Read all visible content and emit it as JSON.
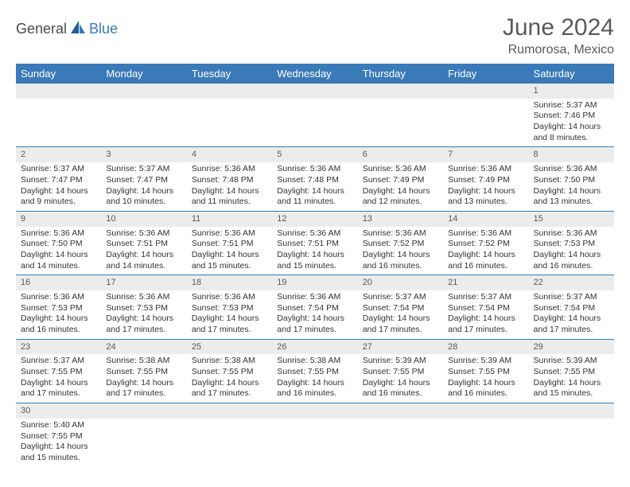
{
  "logo": {
    "part1": "General",
    "part2": "Blue"
  },
  "title": "June 2024",
  "location": "Rumorosa, Mexico",
  "colors": {
    "header_bg": "#3a7ab8",
    "header_text": "#ffffff",
    "daynum_bg": "#ececec",
    "border": "#3a7ab8",
    "text": "#333333",
    "title_text": "#5a5a5a"
  },
  "day_headers": [
    "Sunday",
    "Monday",
    "Tuesday",
    "Wednesday",
    "Thursday",
    "Friday",
    "Saturday"
  ],
  "weeks": [
    [
      {
        "n": "",
        "lines": []
      },
      {
        "n": "",
        "lines": []
      },
      {
        "n": "",
        "lines": []
      },
      {
        "n": "",
        "lines": []
      },
      {
        "n": "",
        "lines": []
      },
      {
        "n": "",
        "lines": []
      },
      {
        "n": "1",
        "lines": [
          "Sunrise: 5:37 AM",
          "Sunset: 7:46 PM",
          "Daylight: 14 hours",
          "and 8 minutes."
        ]
      }
    ],
    [
      {
        "n": "2",
        "lines": [
          "Sunrise: 5:37 AM",
          "Sunset: 7:47 PM",
          "Daylight: 14 hours",
          "and 9 minutes."
        ]
      },
      {
        "n": "3",
        "lines": [
          "Sunrise: 5:37 AM",
          "Sunset: 7:47 PM",
          "Daylight: 14 hours",
          "and 10 minutes."
        ]
      },
      {
        "n": "4",
        "lines": [
          "Sunrise: 5:36 AM",
          "Sunset: 7:48 PM",
          "Daylight: 14 hours",
          "and 11 minutes."
        ]
      },
      {
        "n": "5",
        "lines": [
          "Sunrise: 5:36 AM",
          "Sunset: 7:48 PM",
          "Daylight: 14 hours",
          "and 11 minutes."
        ]
      },
      {
        "n": "6",
        "lines": [
          "Sunrise: 5:36 AM",
          "Sunset: 7:49 PM",
          "Daylight: 14 hours",
          "and 12 minutes."
        ]
      },
      {
        "n": "7",
        "lines": [
          "Sunrise: 5:36 AM",
          "Sunset: 7:49 PM",
          "Daylight: 14 hours",
          "and 13 minutes."
        ]
      },
      {
        "n": "8",
        "lines": [
          "Sunrise: 5:36 AM",
          "Sunset: 7:50 PM",
          "Daylight: 14 hours",
          "and 13 minutes."
        ]
      }
    ],
    [
      {
        "n": "9",
        "lines": [
          "Sunrise: 5:36 AM",
          "Sunset: 7:50 PM",
          "Daylight: 14 hours",
          "and 14 minutes."
        ]
      },
      {
        "n": "10",
        "lines": [
          "Sunrise: 5:36 AM",
          "Sunset: 7:51 PM",
          "Daylight: 14 hours",
          "and 14 minutes."
        ]
      },
      {
        "n": "11",
        "lines": [
          "Sunrise: 5:36 AM",
          "Sunset: 7:51 PM",
          "Daylight: 14 hours",
          "and 15 minutes."
        ]
      },
      {
        "n": "12",
        "lines": [
          "Sunrise: 5:36 AM",
          "Sunset: 7:51 PM",
          "Daylight: 14 hours",
          "and 15 minutes."
        ]
      },
      {
        "n": "13",
        "lines": [
          "Sunrise: 5:36 AM",
          "Sunset: 7:52 PM",
          "Daylight: 14 hours",
          "and 16 minutes."
        ]
      },
      {
        "n": "14",
        "lines": [
          "Sunrise: 5:36 AM",
          "Sunset: 7:52 PM",
          "Daylight: 14 hours",
          "and 16 minutes."
        ]
      },
      {
        "n": "15",
        "lines": [
          "Sunrise: 5:36 AM",
          "Sunset: 7:53 PM",
          "Daylight: 14 hours",
          "and 16 minutes."
        ]
      }
    ],
    [
      {
        "n": "16",
        "lines": [
          "Sunrise: 5:36 AM",
          "Sunset: 7:53 PM",
          "Daylight: 14 hours",
          "and 16 minutes."
        ]
      },
      {
        "n": "17",
        "lines": [
          "Sunrise: 5:36 AM",
          "Sunset: 7:53 PM",
          "Daylight: 14 hours",
          "and 17 minutes."
        ]
      },
      {
        "n": "18",
        "lines": [
          "Sunrise: 5:36 AM",
          "Sunset: 7:53 PM",
          "Daylight: 14 hours",
          "and 17 minutes."
        ]
      },
      {
        "n": "19",
        "lines": [
          "Sunrise: 5:36 AM",
          "Sunset: 7:54 PM",
          "Daylight: 14 hours",
          "and 17 minutes."
        ]
      },
      {
        "n": "20",
        "lines": [
          "Sunrise: 5:37 AM",
          "Sunset: 7:54 PM",
          "Daylight: 14 hours",
          "and 17 minutes."
        ]
      },
      {
        "n": "21",
        "lines": [
          "Sunrise: 5:37 AM",
          "Sunset: 7:54 PM",
          "Daylight: 14 hours",
          "and 17 minutes."
        ]
      },
      {
        "n": "22",
        "lines": [
          "Sunrise: 5:37 AM",
          "Sunset: 7:54 PM",
          "Daylight: 14 hours",
          "and 17 minutes."
        ]
      }
    ],
    [
      {
        "n": "23",
        "lines": [
          "Sunrise: 5:37 AM",
          "Sunset: 7:55 PM",
          "Daylight: 14 hours",
          "and 17 minutes."
        ]
      },
      {
        "n": "24",
        "lines": [
          "Sunrise: 5:38 AM",
          "Sunset: 7:55 PM",
          "Daylight: 14 hours",
          "and 17 minutes."
        ]
      },
      {
        "n": "25",
        "lines": [
          "Sunrise: 5:38 AM",
          "Sunset: 7:55 PM",
          "Daylight: 14 hours",
          "and 17 minutes."
        ]
      },
      {
        "n": "26",
        "lines": [
          "Sunrise: 5:38 AM",
          "Sunset: 7:55 PM",
          "Daylight: 14 hours",
          "and 16 minutes."
        ]
      },
      {
        "n": "27",
        "lines": [
          "Sunrise: 5:39 AM",
          "Sunset: 7:55 PM",
          "Daylight: 14 hours",
          "and 16 minutes."
        ]
      },
      {
        "n": "28",
        "lines": [
          "Sunrise: 5:39 AM",
          "Sunset: 7:55 PM",
          "Daylight: 14 hours",
          "and 16 minutes."
        ]
      },
      {
        "n": "29",
        "lines": [
          "Sunrise: 5:39 AM",
          "Sunset: 7:55 PM",
          "Daylight: 14 hours",
          "and 15 minutes."
        ]
      }
    ],
    [
      {
        "n": "30",
        "lines": [
          "Sunrise: 5:40 AM",
          "Sunset: 7:55 PM",
          "Daylight: 14 hours",
          "and 15 minutes."
        ]
      },
      {
        "n": "",
        "lines": []
      },
      {
        "n": "",
        "lines": []
      },
      {
        "n": "",
        "lines": []
      },
      {
        "n": "",
        "lines": []
      },
      {
        "n": "",
        "lines": []
      },
      {
        "n": "",
        "lines": []
      }
    ]
  ]
}
